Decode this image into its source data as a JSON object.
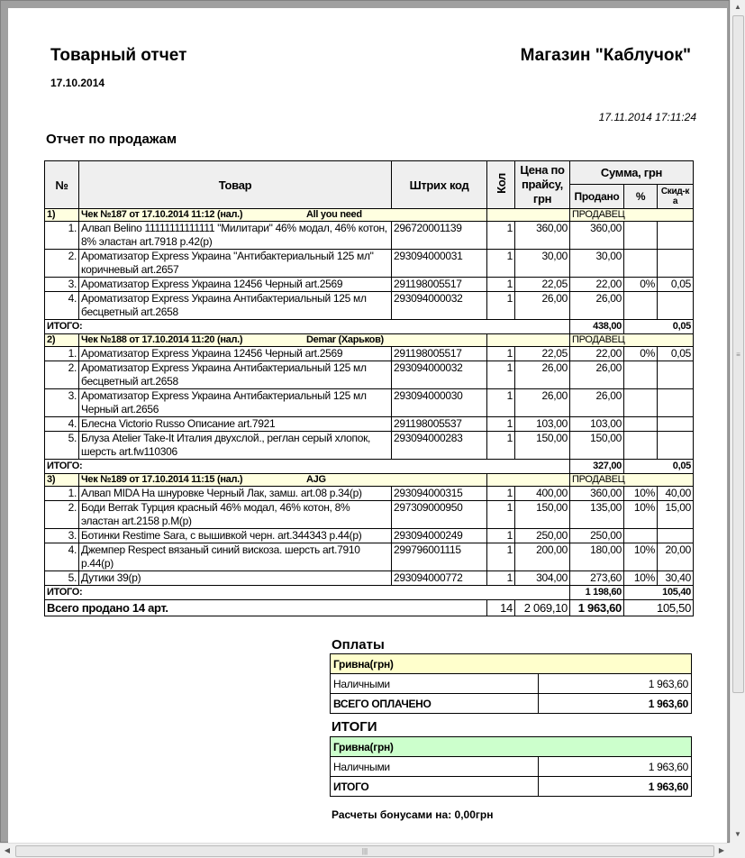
{
  "header": {
    "title": "Товарный отчет",
    "date": "17.10.2014",
    "store": "Магазин \"Каблучок\"",
    "printed": "17.11.2014 17:11:24",
    "section_title": "Отчет по продажам"
  },
  "columns": {
    "num": "№",
    "item": "Товар",
    "barcode": "Штрих код",
    "qty": "Кол",
    "price": "Цена по прайсу, грн",
    "sum": "Сумма, грн",
    "sold": "Продано",
    "pct": "%",
    "discount": "Скид-ка"
  },
  "receipts": [
    {
      "no": "1)",
      "title": "Чек №187 от 17.10.2014 11:12  (нал.)",
      "seller": "All you need",
      "seller_label": "ПРОДАВЕЦ",
      "total_label": "ИТОГО:",
      "total_sold": "438,00",
      "total_discount": "0,05",
      "items": [
        {
          "n": "1.",
          "name": "Алвап Belino 11111111111111 \"Милитари\" 46% модал, 46% котон, 8% эластан art.7918 р.42(р)",
          "barcode": "296720001139",
          "qty": "1",
          "price": "360,00",
          "sold": "360,00",
          "pct": "",
          "disc": ""
        },
        {
          "n": "2.",
          "name": "Ароматизатор Express Украина \"Антибактериальный 125 мл\" коричневый art.2657",
          "barcode": "293094000031",
          "qty": "1",
          "price": "30,00",
          "sold": "30,00",
          "pct": "",
          "disc": ""
        },
        {
          "n": "3.",
          "name": "Ароматизатор Express Украина 12456 Черный art.2569",
          "barcode": "291198005517",
          "qty": "1",
          "price": "22,05",
          "sold": "22,00",
          "pct": "0%",
          "disc": "0,05"
        },
        {
          "n": "4.",
          "name": "Ароматизатор Express Украина Антибактериальный 125 мл бесцветный art.2658",
          "barcode": "293094000032",
          "qty": "1",
          "price": "26,00",
          "sold": "26,00",
          "pct": "",
          "disc": ""
        }
      ]
    },
    {
      "no": "2)",
      "title": "Чек №188 от 17.10.2014 11:20  (нал.)",
      "seller": "Demar (Харьков)",
      "seller_label": "ПРОДАВЕЦ",
      "total_label": "ИТОГО:",
      "total_sold": "327,00",
      "total_discount": "0,05",
      "items": [
        {
          "n": "1.",
          "name": "Ароматизатор Express Украина 12456 Черный art.2569",
          "barcode": "291198005517",
          "qty": "1",
          "price": "22,05",
          "sold": "22,00",
          "pct": "0%",
          "disc": "0,05"
        },
        {
          "n": "2.",
          "name": "Ароматизатор Express Украина Антибактериальный 125 мл бесцветный art.2658",
          "barcode": "293094000032",
          "qty": "1",
          "price": "26,00",
          "sold": "26,00",
          "pct": "",
          "disc": ""
        },
        {
          "n": "3.",
          "name": "Ароматизатор Express Украина Антибактериальный 125 мл Черный art.2656",
          "barcode": "293094000030",
          "qty": "1",
          "price": "26,00",
          "sold": "26,00",
          "pct": "",
          "disc": ""
        },
        {
          "n": "4.",
          "name": "Блесна Victorio Russo Описание art.7921",
          "barcode": "291198005537",
          "qty": "1",
          "price": "103,00",
          "sold": "103,00",
          "pct": "",
          "disc": ""
        },
        {
          "n": "5.",
          "name": "Блуза Atelier Take-It Италия двухслой., реглан серый хлопок, шерсть art.fw110306",
          "barcode": "293094000283",
          "qty": "1",
          "price": "150,00",
          "sold": "150,00",
          "pct": "",
          "disc": ""
        }
      ]
    },
    {
      "no": "3)",
      "title": "Чек №189 от 17.10.2014 11:15  (нал.)",
      "seller": "AJG",
      "seller_label": "ПРОДАВЕЦ",
      "total_label": "ИТОГО:",
      "total_sold": "1 198,60",
      "total_discount": "105,40",
      "items": [
        {
          "n": "1.",
          "name": "Алвап MIDA На шнуровке Черный Лак, замш. art.08 р.34(р)",
          "barcode": "293094000315",
          "qty": "1",
          "price": "400,00",
          "sold": "360,00",
          "pct": "10%",
          "disc": "40,00"
        },
        {
          "n": "2.",
          "name": "Боди Berrak Турция красный 46% модал, 46% котон, 8% эластан art.2158 р.M(р)",
          "barcode": "297309000950",
          "qty": "1",
          "price": "150,00",
          "sold": "135,00",
          "pct": "10%",
          "disc": "15,00"
        },
        {
          "n": "3.",
          "name": "Ботинки Restime Sara, с вышивкой черн. art.344343 р.44(р)",
          "barcode": "293094000249",
          "qty": "1",
          "price": "250,00",
          "sold": "250,00",
          "pct": "",
          "disc": ""
        },
        {
          "n": "4.",
          "name": "Джемпер Respect вязаный синий вискоза. шерсть art.7910 р.44(р)",
          "barcode": "299796001115",
          "qty": "1",
          "price": "200,00",
          "sold": "180,00",
          "pct": "10%",
          "disc": "20,00"
        },
        {
          "n": "5.",
          "name": "Дутики 39(р)",
          "barcode": "293094000772",
          "qty": "1",
          "price": "304,00",
          "sold": "273,60",
          "pct": "10%",
          "disc": "30,40"
        }
      ]
    }
  ],
  "grand": {
    "label": "Всего продано 14 арт.",
    "qty": "14",
    "price": "2 069,10",
    "sold": "1 963,60",
    "discount": "105,50"
  },
  "payments": {
    "title": "Оплаты",
    "currency": "Гривна(грн)",
    "rows": [
      {
        "label": "Наличными",
        "value": "1 963,60"
      }
    ],
    "total_label": "ВСЕГО ОПЛАЧЕНО",
    "total_value": "1 963,60"
  },
  "totals": {
    "title": "ИТОГИ",
    "currency": "Гривна(грн)",
    "rows": [
      {
        "label": "Наличными",
        "value": "1 963,60"
      }
    ],
    "total_label": "ИТОГО",
    "total_value": "1 963,60"
  },
  "bonus": "Расчеты бонусами на: 0,00грн",
  "colors": {
    "section_bg": "#ffffe0",
    "payments_bg": "#ffffcc",
    "totals_bg": "#ccffcc"
  }
}
